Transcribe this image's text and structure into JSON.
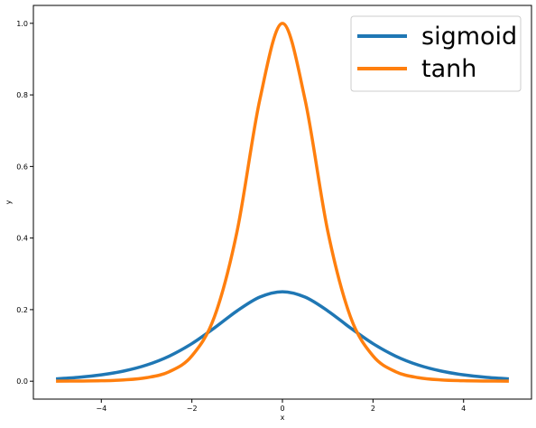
{
  "chart_data": {
    "type": "line",
    "title": "",
    "xlabel": "x",
    "ylabel": "y",
    "xlim": [
      -5.5,
      5.5
    ],
    "ylim": [
      -0.05,
      1.05
    ],
    "xticks": [
      -4,
      -2,
      0,
      2,
      4
    ],
    "xtick_labels": [
      "−4",
      "−2",
      "0",
      "2",
      "4"
    ],
    "yticks": [
      0.0,
      0.2,
      0.4,
      0.6,
      0.8,
      1.0
    ],
    "ytick_labels": [
      "0.0",
      "0.2",
      "0.4",
      "0.6",
      "0.8",
      "1.0"
    ],
    "grid": false,
    "legend_position": "top-right",
    "x": [
      -5,
      -4.5,
      -4,
      -3.5,
      -3,
      -2.5,
      -2,
      -1.5,
      -1,
      -0.5,
      0,
      0.5,
      1,
      1.5,
      2,
      2.5,
      3,
      3.5,
      4,
      4.5,
      5
    ],
    "series": [
      {
        "name": "sigmoid",
        "color": "#1f77b4",
        "values": [
          0.0066,
          0.0109,
          0.0177,
          0.0285,
          0.0452,
          0.0701,
          0.105,
          0.1491,
          0.1966,
          0.235,
          0.25,
          0.235,
          0.1966,
          0.1491,
          0.105,
          0.0701,
          0.0452,
          0.0285,
          0.0177,
          0.0109,
          0.0066
        ]
      },
      {
        "name": "tanh",
        "color": "#ff7f0e",
        "values": [
          0.0002,
          0.0005,
          0.0013,
          0.0036,
          0.0099,
          0.0266,
          0.0707,
          0.1807,
          0.42,
          0.7864,
          1.0,
          0.7864,
          0.42,
          0.1807,
          0.0707,
          0.0266,
          0.0099,
          0.0036,
          0.0013,
          0.0005,
          0.0002
        ]
      }
    ]
  }
}
